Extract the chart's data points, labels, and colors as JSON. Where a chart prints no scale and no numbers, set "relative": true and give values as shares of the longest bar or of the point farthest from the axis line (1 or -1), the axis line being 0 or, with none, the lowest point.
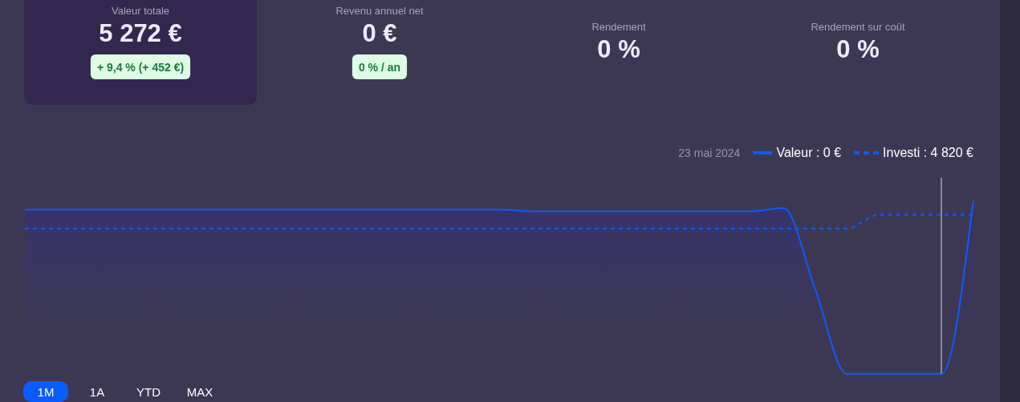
{
  "chart_data": [
    {
      "type": "other",
      "title": "Valeur totale",
      "annotations": [
        "5 272 €",
        "+ 9,4 % (+ 452 €)"
      ]
    },
    {
      "type": "other",
      "title": "Revenu annuel net",
      "annotations": [
        "0 €",
        "0 % / an"
      ]
    },
    {
      "type": "other",
      "title": "Rendement",
      "annotations": [
        "0 %"
      ]
    },
    {
      "type": "other",
      "title": "Rendement sur coût",
      "annotations": [
        "0 %"
      ]
    },
    {
      "type": "line",
      "relative": true,
      "legend": "top right",
      "categories": [
        null,
        null,
        null,
        null,
        null,
        null,
        null,
        null,
        null,
        null,
        null,
        null,
        null,
        null,
        null,
        null,
        null,
        null,
        null,
        null,
        null,
        null,
        null,
        null,
        null,
        null,
        null,
        null,
        null,
        null,
        null
      ],
      "series": [
        {
          "name": "Valeur : 0 €",
          "type": "area",
          "color": "#0d5cff",
          "line_style": "solid",
          "values": [
            0.95,
            0.95,
            0.95,
            0.95,
            0.95,
            0.95,
            0.95,
            0.95,
            0.95,
            0.95,
            0.95,
            0.95,
            0.95,
            0.95,
            0.95,
            0.95,
            0.94,
            0.94,
            0.94,
            0.94,
            0.94,
            0.94,
            0.94,
            0.94,
            0.96,
            0.49,
            0,
            0,
            0,
            0,
            1
          ]
        },
        {
          "name": "Investi : 4 820 €",
          "type": "line",
          "color": "#0d5cff",
          "line_style": "dashed",
          "values": [
            0.84,
            0.84,
            0.84,
            0.84,
            0.84,
            0.84,
            0.84,
            0.84,
            0.84,
            0.84,
            0.84,
            0.84,
            0.84,
            0.84,
            0.84,
            0.84,
            0.84,
            0.84,
            0.84,
            0.84,
            0.84,
            0.84,
            0.84,
            0.84,
            0.84,
            0.84,
            0.84,
            0.92,
            0.92,
            0.92,
            0.92
          ]
        }
      ],
      "annotations": [
        "23 mai 2024"
      ]
    },
    {
      "type": "other",
      "annotations": [
        "1M",
        "1A",
        "YTD",
        "MAX"
      ]
    }
  ]
}
